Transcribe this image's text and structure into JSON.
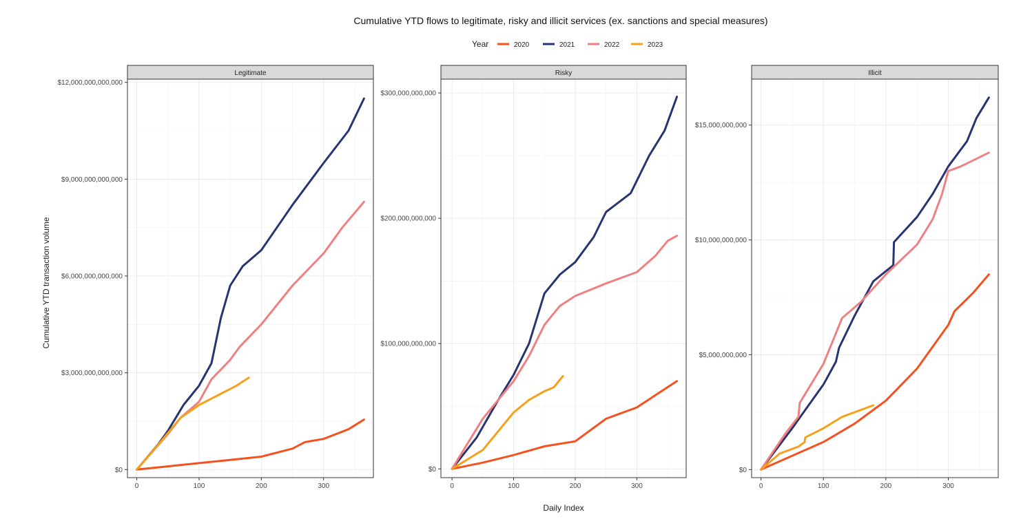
{
  "chart_data": {
    "type": "line",
    "title": "Cumulative YTD flows to legitimate, risky and illicit services (ex. sanctions and special measures)",
    "xlabel": "Daily Index",
    "ylabel": "Cumulative YTD transaction volume",
    "legend": {
      "title": "Year",
      "position": "top",
      "entries": [
        {
          "name": "2020",
          "color": "#f4511e"
        },
        {
          "name": "2021",
          "color": "#283371"
        },
        {
          "name": "2022",
          "color": "#f08080"
        },
        {
          "name": "2023",
          "color": "#f6a01a"
        }
      ]
    },
    "grid": true,
    "panels": [
      {
        "name": "Legitimate",
        "xlim": [
          -15,
          380
        ],
        "ylim": [
          -250000000000,
          12100000000000
        ],
        "x_ticks": [
          0,
          100,
          200,
          300
        ],
        "x_tick_labels": [
          "0",
          "100",
          "200",
          "300"
        ],
        "y_ticks": [
          0,
          3000000000000,
          6000000000000,
          9000000000000,
          12000000000000
        ],
        "y_tick_labels": [
          "$0",
          "$3,000,000,000,000",
          "$6,000,000,000,000",
          "$9,000,000,000,000",
          "$12,000,000,000,000"
        ],
        "series": [
          {
            "name": "2020",
            "x": [
              0,
              50,
              100,
              150,
              200,
              250,
              270,
              300,
              340,
              365
            ],
            "y": [
              0,
              100000000000,
              200000000000,
              300000000000,
              400000000000,
              650000000000,
              850000000000,
              950000000000,
              1250000000000,
              1550000000000
            ]
          },
          {
            "name": "2021",
            "x": [
              0,
              35,
              50,
              75,
              100,
              120,
              135,
              150,
              170,
              200,
              250,
              300,
              340,
              365
            ],
            "y": [
              0,
              800000000000,
              1200000000000,
              2000000000000,
              2600000000000,
              3300000000000,
              4700000000000,
              5700000000000,
              6300000000000,
              6800000000000,
              8200000000000,
              9500000000000,
              10500000000000,
              11500000000000
            ]
          },
          {
            "name": "2022",
            "x": [
              0,
              50,
              70,
              100,
              120,
              150,
              165,
              200,
              250,
              300,
              330,
              365
            ],
            "y": [
              0,
              1100000000000,
              1600000000000,
              2100000000000,
              2800000000000,
              3400000000000,
              3800000000000,
              4500000000000,
              5700000000000,
              6700000000000,
              7500000000000,
              8300000000000
            ]
          },
          {
            "name": "2023",
            "x": [
              0,
              40,
              70,
              100,
              130,
              160,
              180
            ],
            "y": [
              0,
              900000000000,
              1600000000000,
              2000000000000,
              2300000000000,
              2600000000000,
              2850000000000
            ]
          }
        ]
      },
      {
        "name": "Risky",
        "xlim": [
          -18,
          380
        ],
        "ylim": [
          -7000000000,
          311000000000
        ],
        "x_ticks": [
          0,
          100,
          200,
          300
        ],
        "x_tick_labels": [
          "0",
          "100",
          "200",
          "300"
        ],
        "y_ticks": [
          0,
          100000000000,
          200000000000,
          300000000000
        ],
        "y_tick_labels": [
          "$0",
          "$100,000,000,000",
          "$200,000,000,000",
          "$300,000,000,000"
        ],
        "series": [
          {
            "name": "2020",
            "x": [
              0,
              50,
              100,
              150,
              200,
              250,
              300,
              340,
              365
            ],
            "y": [
              0,
              5000000000,
              11000000000,
              18000000000,
              22000000000,
              40000000000,
              49000000000,
              62000000000,
              70000000000
            ]
          },
          {
            "name": "2021",
            "x": [
              0,
              40,
              75,
              100,
              125,
              150,
              175,
              200,
              230,
              250,
              290,
              320,
              345,
              365
            ],
            "y": [
              0,
              25000000000,
              55000000000,
              75000000000,
              100000000000,
              140000000000,
              155000000000,
              165000000000,
              185000000000,
              205000000000,
              220000000000,
              250000000000,
              270000000000,
              297000000000
            ]
          },
          {
            "name": "2022",
            "x": [
              0,
              50,
              75,
              100,
              125,
              150,
              175,
              200,
              250,
              300,
              330,
              350,
              365
            ],
            "y": [
              0,
              40000000000,
              55000000000,
              70000000000,
              90000000000,
              115000000000,
              130000000000,
              138000000000,
              148000000000,
              157000000000,
              170000000000,
              182000000000,
              186000000000
            ]
          },
          {
            "name": "2023",
            "x": [
              0,
              50,
              75,
              100,
              125,
              150,
              165,
              180
            ],
            "y": [
              0,
              15000000000,
              30000000000,
              45000000000,
              55000000000,
              62000000000,
              65000000000,
              74000000000
            ]
          }
        ]
      },
      {
        "name": "Illicit",
        "xlim": [
          -15,
          380
        ],
        "ylim": [
          -350000000,
          17000000000
        ],
        "x_ticks": [
          0,
          100,
          200,
          300
        ],
        "x_tick_labels": [
          "0",
          "100",
          "200",
          "300"
        ],
        "y_ticks": [
          0,
          5000000000,
          10000000000,
          15000000000
        ],
        "y_tick_labels": [
          "$0",
          "$5,000,000,000",
          "$10,000,000,000",
          "$15,000,000,000"
        ],
        "series": [
          {
            "name": "2020",
            "x": [
              0,
              50,
              100,
              150,
              200,
              250,
              300,
              310,
              340,
              365
            ],
            "y": [
              0,
              600000000,
              1200000000,
              2000000000,
              3000000000,
              4400000000,
              6300000000,
              6900000000,
              7700000000,
              8500000000
            ]
          },
          {
            "name": "2021",
            "x": [
              0,
              50,
              100,
              120,
              125,
              150,
              180,
              212,
              213,
              250,
              275,
              300,
              330,
              345,
              365
            ],
            "y": [
              0,
              1800000000,
              3700000000,
              4700000000,
              5300000000,
              6700000000,
              8200000000,
              8900000000,
              9900000000,
              11000000000,
              12000000000,
              13200000000,
              14300000000,
              15300000000,
              16200000000
            ]
          },
          {
            "name": "2022",
            "x": [
              0,
              40,
              60,
              62,
              100,
              130,
              160,
              200,
              250,
              275,
              290,
              300,
              320,
              365
            ],
            "y": [
              0,
              1600000000,
              2300000000,
              2900000000,
              4600000000,
              6600000000,
              7300000000,
              8500000000,
              9800000000,
              10900000000,
              12000000000,
              13000000000,
              13200000000,
              13800000000
            ]
          },
          {
            "name": "2023",
            "x": [
              0,
              30,
              60,
              70,
              71,
              100,
              130,
              160,
              180
            ],
            "y": [
              0,
              700000000,
              1000000000,
              1200000000,
              1400000000,
              1800000000,
              2300000000,
              2600000000,
              2800000000
            ]
          }
        ]
      }
    ]
  }
}
